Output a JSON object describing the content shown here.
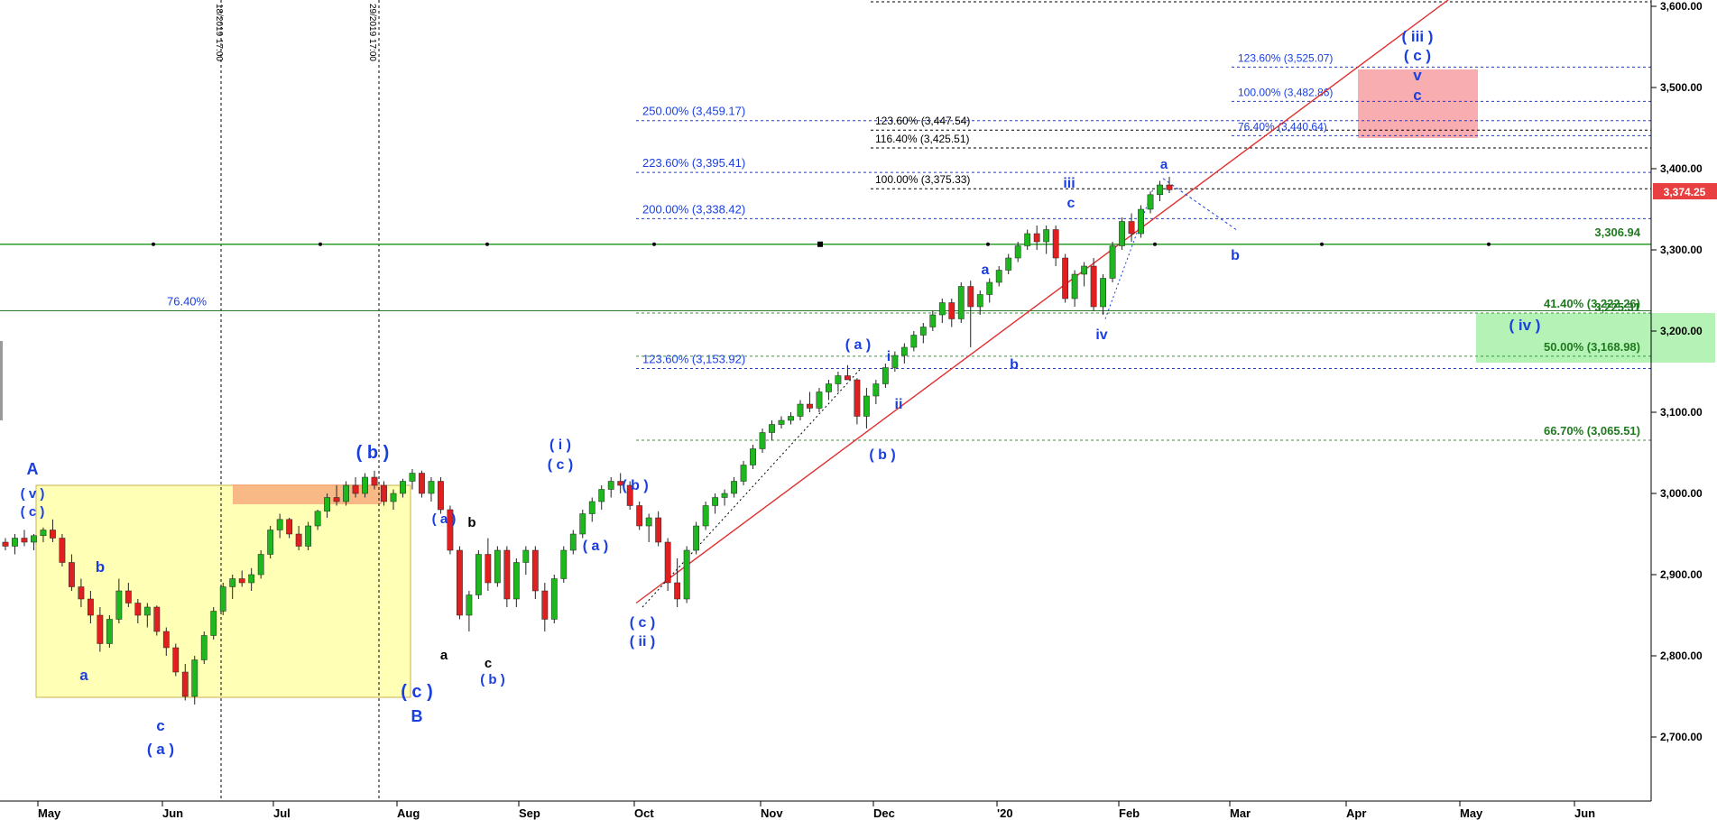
{
  "chart_data": {
    "type": "candlestick",
    "title": "",
    "last_price_label": "3,374.25",
    "y_ticks": [
      "3,600.00",
      "3,500.00",
      "3,400.00",
      "3,300.00",
      "3,200.00",
      "3,100.00",
      "3,000.00",
      "2,900.00",
      "2,800.00",
      "2,700.00"
    ],
    "y_values": [
      3600,
      3500,
      3400,
      3300,
      3200,
      3100,
      3000,
      2900,
      2800,
      2700
    ],
    "x_ticks": [
      "May",
      "Jun",
      "Jul",
      "Aug",
      "Sep",
      "Oct",
      "Nov",
      "Dec",
      "'20",
      "Feb",
      "Mar",
      "Apr",
      "May",
      "Jun"
    ],
    "vertical_markers": [
      "18/2019 17:00",
      "29/2019 17:00"
    ],
    "horizontal_level_label": "3,306.94",
    "horizontal_level_value": 3306.94,
    "left_level_label": "76.40%",
    "left_level_value": 3225,
    "fib_levels_blue": [
      {
        "label": "250.00% (3,459.17)",
        "value": 3459.17
      },
      {
        "label": "223.60% (3,395.41)",
        "value": 3395.41
      },
      {
        "label": "200.00% (3,338.42)",
        "value": 3338.42
      },
      {
        "label": "123.60% (3,153.92)",
        "value": 3153.92
      }
    ],
    "fib_levels_black": [
      {
        "label": "123.60% (3,447.54)",
        "value": 3447.54
      },
      {
        "label": "116.40% (3,425.51)",
        "value": 3425.51
      },
      {
        "label": "100.00% (3,375.33)",
        "value": 3375.33
      }
    ],
    "fib_levels_target": [
      {
        "label": "123.60% (3,525.07)",
        "value": 3525.07
      },
      {
        "label": "100.00% (3,482.86)",
        "value": 3482.86
      },
      {
        "label": "76.40% (3,440.64)",
        "value": 3440.64
      }
    ],
    "fib_levels_green": [
      {
        "label": "41.40% (3,222.26)",
        "value": 3222.26
      },
      {
        "label": "3,225.31",
        "value": 3225.31
      },
      {
        "label": "50.00% (3,168.98)",
        "value": 3168.98
      },
      {
        "label": "66.70% (3,065.51)",
        "value": 3065.51
      }
    ],
    "wave_labels": [
      "A",
      "( v )",
      "( c )",
      "b",
      "a",
      "c",
      "( a )",
      "( b )",
      "( c )",
      "B",
      "( a )",
      "b",
      "a",
      "c",
      "( b )",
      "( i )",
      "( c )",
      "( a )",
      "( b )",
      "( c )",
      "( ii )",
      "( a )",
      "i",
      "ii",
      "( b )",
      "a",
      "b",
      "iii",
      "c",
      "iv",
      "a",
      "b",
      "( iii )",
      "( c )",
      "v",
      "c",
      "( iv )"
    ],
    "candles": [
      [
        2940,
        2945,
        2930,
        2935
      ],
      [
        2935,
        2950,
        2925,
        2945
      ],
      [
        2945,
        2955,
        2935,
        2940
      ],
      [
        2940,
        2950,
        2930,
        2948
      ],
      [
        2948,
        2958,
        2940,
        2955
      ],
      [
        2955,
        2968,
        2940,
        2945
      ],
      [
        2945,
        2950,
        2910,
        2915
      ],
      [
        2915,
        2925,
        2880,
        2885
      ],
      [
        2885,
        2895,
        2860,
        2870
      ],
      [
        2870,
        2880,
        2840,
        2850
      ],
      [
        2850,
        2860,
        2805,
        2815
      ],
      [
        2815,
        2850,
        2810,
        2845
      ],
      [
        2845,
        2895,
        2840,
        2880
      ],
      [
        2880,
        2890,
        2860,
        2865
      ],
      [
        2865,
        2870,
        2840,
        2850
      ],
      [
        2850,
        2865,
        2835,
        2860
      ],
      [
        2860,
        2862,
        2825,
        2830
      ],
      [
        2830,
        2835,
        2800,
        2810
      ],
      [
        2810,
        2815,
        2775,
        2780
      ],
      [
        2780,
        2790,
        2745,
        2750
      ],
      [
        2750,
        2800,
        2740,
        2795
      ],
      [
        2795,
        2830,
        2790,
        2825
      ],
      [
        2825,
        2860,
        2820,
        2855
      ],
      [
        2855,
        2890,
        2850,
        2885
      ],
      [
        2885,
        2900,
        2870,
        2895
      ],
      [
        2895,
        2905,
        2885,
        2890
      ],
      [
        2890,
        2908,
        2880,
        2900
      ],
      [
        2900,
        2930,
        2895,
        2925
      ],
      [
        2925,
        2960,
        2920,
        2955
      ],
      [
        2955,
        2975,
        2945,
        2968
      ],
      [
        2968,
        2970,
        2945,
        2950
      ],
      [
        2950,
        2960,
        2930,
        2935
      ],
      [
        2935,
        2965,
        2930,
        2960
      ],
      [
        2960,
        2980,
        2955,
        2978
      ],
      [
        2978,
        3000,
        2970,
        2995
      ],
      [
        2995,
        3010,
        2985,
        2990
      ],
      [
        2990,
        3015,
        2985,
        3010
      ],
      [
        3010,
        3020,
        2995,
        3000
      ],
      [
        3000,
        3025,
        2995,
        3020
      ],
      [
        3020,
        3028,
        3005,
        3010
      ],
      [
        3010,
        3015,
        2985,
        2990
      ],
      [
        2990,
        3005,
        2980,
        3000
      ],
      [
        3000,
        3018,
        2995,
        3015
      ],
      [
        3015,
        3030,
        3005,
        3025
      ],
      [
        3025,
        3028,
        2995,
        3000
      ],
      [
        3000,
        3020,
        2990,
        3015
      ],
      [
        3015,
        3020,
        2975,
        2980
      ],
      [
        2980,
        2985,
        2925,
        2930
      ],
      [
        2930,
        2935,
        2845,
        2850
      ],
      [
        2850,
        2880,
        2830,
        2875
      ],
      [
        2875,
        2930,
        2870,
        2925
      ],
      [
        2925,
        2945,
        2880,
        2890
      ],
      [
        2890,
        2935,
        2885,
        2930
      ],
      [
        2930,
        2935,
        2860,
        2870
      ],
      [
        2870,
        2920,
        2860,
        2915
      ],
      [
        2915,
        2935,
        2900,
        2930
      ],
      [
        2930,
        2935,
        2870,
        2880
      ],
      [
        2880,
        2890,
        2830,
        2845
      ],
      [
        2845,
        2900,
        2840,
        2895
      ],
      [
        2895,
        2935,
        2890,
        2930
      ],
      [
        2930,
        2955,
        2925,
        2950
      ],
      [
        2950,
        2980,
        2945,
        2975
      ],
      [
        2975,
        2995,
        2965,
        2990
      ],
      [
        2990,
        3010,
        2980,
        3005
      ],
      [
        3005,
        3020,
        2995,
        3015
      ],
      [
        3015,
        3025,
        3000,
        3010
      ],
      [
        3010,
        3015,
        2980,
        2985
      ],
      [
        2985,
        2990,
        2955,
        2960
      ],
      [
        2960,
        2975,
        2940,
        2970
      ],
      [
        2970,
        2978,
        2935,
        2940
      ],
      [
        2940,
        2945,
        2880,
        2890
      ],
      [
        2890,
        2920,
        2860,
        2870
      ],
      [
        2870,
        2935,
        2865,
        2930
      ],
      [
        2930,
        2965,
        2925,
        2960
      ],
      [
        2960,
        2990,
        2955,
        2985
      ],
      [
        2985,
        3000,
        2975,
        2995
      ],
      [
        2995,
        3005,
        2985,
        3000
      ],
      [
        3000,
        3020,
        2995,
        3015
      ],
      [
        3015,
        3040,
        3010,
        3035
      ],
      [
        3035,
        3060,
        3030,
        3055
      ],
      [
        3055,
        3080,
        3050,
        3075
      ],
      [
        3075,
        3090,
        3065,
        3085
      ],
      [
        3085,
        3095,
        3080,
        3090
      ],
      [
        3090,
        3100,
        3085,
        3095
      ],
      [
        3095,
        3115,
        3090,
        3110
      ],
      [
        3110,
        3125,
        3100,
        3105
      ],
      [
        3105,
        3130,
        3100,
        3125
      ],
      [
        3125,
        3140,
        3115,
        3135
      ],
      [
        3135,
        3150,
        3125,
        3145
      ],
      [
        3145,
        3158,
        3140,
        3140
      ],
      [
        3140,
        3142,
        3085,
        3095
      ],
      [
        3095,
        3130,
        3080,
        3120
      ],
      [
        3120,
        3140,
        3110,
        3135
      ],
      [
        3135,
        3160,
        3130,
        3155
      ],
      [
        3155,
        3175,
        3150,
        3170
      ],
      [
        3170,
        3185,
        3160,
        3180
      ],
      [
        3180,
        3200,
        3175,
        3195
      ],
      [
        3195,
        3210,
        3185,
        3205
      ],
      [
        3205,
        3225,
        3200,
        3220
      ],
      [
        3220,
        3240,
        3210,
        3235
      ],
      [
        3235,
        3240,
        3205,
        3215
      ],
      [
        3215,
        3260,
        3210,
        3255
      ],
      [
        3255,
        3262,
        3180,
        3230
      ],
      [
        3230,
        3250,
        3220,
        3245
      ],
      [
        3245,
        3265,
        3235,
        3260
      ],
      [
        3260,
        3280,
        3255,
        3275
      ],
      [
        3275,
        3295,
        3270,
        3290
      ],
      [
        3290,
        3310,
        3285,
        3305
      ],
      [
        3305,
        3325,
        3300,
        3320
      ],
      [
        3320,
        3330,
        3300,
        3310
      ],
      [
        3310,
        3330,
        3295,
        3325
      ],
      [
        3325,
        3330,
        3280,
        3290
      ],
      [
        3290,
        3295,
        3235,
        3240
      ],
      [
        3240,
        3275,
        3230,
        3270
      ],
      [
        3270,
        3285,
        3255,
        3280
      ],
      [
        3280,
        3290,
        3225,
        3230
      ],
      [
        3230,
        3270,
        3220,
        3265
      ],
      [
        3265,
        3310,
        3260,
        3305
      ],
      [
        3305,
        3340,
        3300,
        3335
      ],
      [
        3335,
        3345,
        3310,
        3320
      ],
      [
        3320,
        3355,
        3315,
        3350
      ],
      [
        3350,
        3372,
        3345,
        3368
      ],
      [
        3368,
        3385,
        3360,
        3380
      ],
      [
        3380,
        3390,
        3370,
        3374
      ]
    ]
  }
}
